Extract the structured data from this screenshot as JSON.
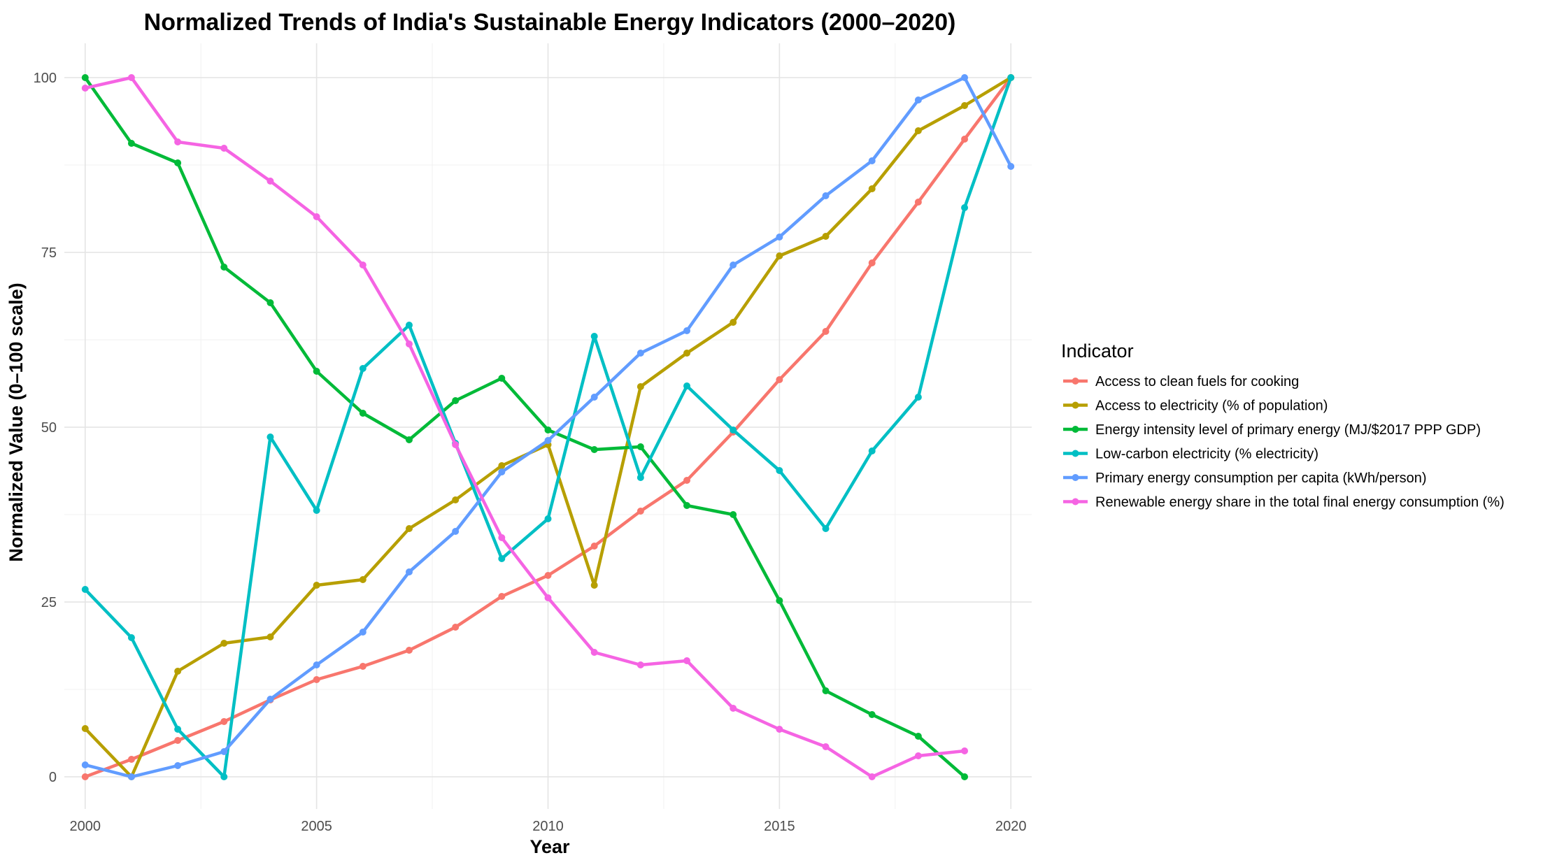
{
  "chart_data": {
    "type": "line",
    "title": "Normalized Trends of India's Sustainable Energy Indicators (2000–2020)",
    "xlabel": "Year",
    "ylabel": "Normalized Value (0–100 scale)",
    "xlim": [
      1999.55,
      2020.45
    ],
    "ylim": [
      -4.6,
      104.9
    ],
    "x_ticks": [
      2000,
      2005,
      2010,
      2015,
      2020
    ],
    "y_ticks": [
      0,
      25,
      50,
      75,
      100
    ],
    "x_tick_labels": [
      "2000",
      "2005",
      "2010",
      "2015",
      "2020"
    ],
    "y_tick_labels": [
      "0",
      "25",
      "50",
      "75",
      "100"
    ],
    "grid": true,
    "legend_position": "right",
    "legend_title": "Indicator",
    "series": [
      {
        "name": "Access to clean fuels for cooking",
        "color": "#F8766D",
        "x": [
          2000,
          2001,
          2002,
          2003,
          2004,
          2005,
          2006,
          2007,
          2008,
          2009,
          2010,
          2011,
          2012,
          2013,
          2014,
          2015,
          2016,
          2017,
          2018,
          2019,
          2020
        ],
        "y": [
          0,
          2.5,
          5.2,
          7.9,
          11.0,
          13.9,
          15.8,
          18.1,
          21.4,
          25.8,
          28.8,
          33.0,
          38.0,
          42.4,
          49.3,
          56.8,
          63.7,
          73.5,
          82.2,
          91.2,
          100
        ]
      },
      {
        "name": "Access to electricity (% of population)",
        "color": "#B79F00",
        "x": [
          2000,
          2001,
          2002,
          2003,
          2004,
          2005,
          2006,
          2007,
          2008,
          2009,
          2010,
          2011,
          2012,
          2013,
          2014,
          2015,
          2016,
          2017,
          2018,
          2019,
          2020
        ],
        "y": [
          6.9,
          0,
          15.1,
          19.1,
          20.0,
          27.4,
          28.2,
          35.5,
          39.6,
          44.5,
          47.5,
          27.4,
          55.8,
          60.6,
          65.0,
          74.5,
          77.3,
          84.1,
          92.4,
          96.0,
          100
        ]
      },
      {
        "name": "Energy intensity level of primary energy (MJ/$2017 PPP GDP)",
        "color": "#00BA38",
        "x": [
          2000,
          2001,
          2002,
          2003,
          2004,
          2005,
          2006,
          2007,
          2008,
          2009,
          2010,
          2011,
          2012,
          2013,
          2014,
          2015,
          2016,
          2017,
          2018,
          2019
        ],
        "y": [
          100,
          90.6,
          87.8,
          72.9,
          67.8,
          58.0,
          52.0,
          48.2,
          53.8,
          57.0,
          49.6,
          46.8,
          47.2,
          38.8,
          37.5,
          25.2,
          12.3,
          8.9,
          5.8,
          0
        ]
      },
      {
        "name": "Low-carbon electricity (% electricity)",
        "color": "#00BFC4",
        "x": [
          2000,
          2001,
          2002,
          2003,
          2004,
          2005,
          2006,
          2007,
          2008,
          2009,
          2010,
          2011,
          2012,
          2013,
          2014,
          2015,
          2016,
          2017,
          2018,
          2019,
          2020
        ],
        "y": [
          26.8,
          19.9,
          6.8,
          0,
          48.6,
          38.1,
          58.4,
          64.6,
          47.7,
          31.2,
          36.9,
          63.0,
          42.8,
          55.9,
          49.6,
          43.8,
          35.5,
          46.6,
          54.3,
          81.4,
          100
        ]
      },
      {
        "name": "Primary energy consumption per capita (kWh/person)",
        "color": "#619CFF",
        "x": [
          2000,
          2001,
          2002,
          2003,
          2004,
          2005,
          2006,
          2007,
          2008,
          2009,
          2010,
          2011,
          2012,
          2013,
          2014,
          2015,
          2016,
          2017,
          2018,
          2019,
          2020
        ],
        "y": [
          1.7,
          0,
          1.6,
          3.6,
          11.1,
          16.0,
          20.7,
          29.3,
          35.1,
          43.6,
          48.1,
          54.3,
          60.6,
          63.8,
          73.2,
          77.2,
          83.1,
          88.1,
          96.8,
          100,
          87.3
        ]
      },
      {
        "name": "Renewable energy share in the total final energy consumption (%)",
        "color": "#F564E3",
        "x": [
          2000,
          2001,
          2002,
          2003,
          2004,
          2005,
          2006,
          2007,
          2008,
          2009,
          2010,
          2011,
          2012,
          2013,
          2014,
          2015,
          2016,
          2017,
          2018,
          2019
        ],
        "y": [
          98.5,
          100,
          90.8,
          89.9,
          85.2,
          80.1,
          73.2,
          61.9,
          47.5,
          34.2,
          25.6,
          17.8,
          16.0,
          16.6,
          9.8,
          6.8,
          4.3,
          0,
          3.0,
          3.7
        ]
      }
    ]
  }
}
